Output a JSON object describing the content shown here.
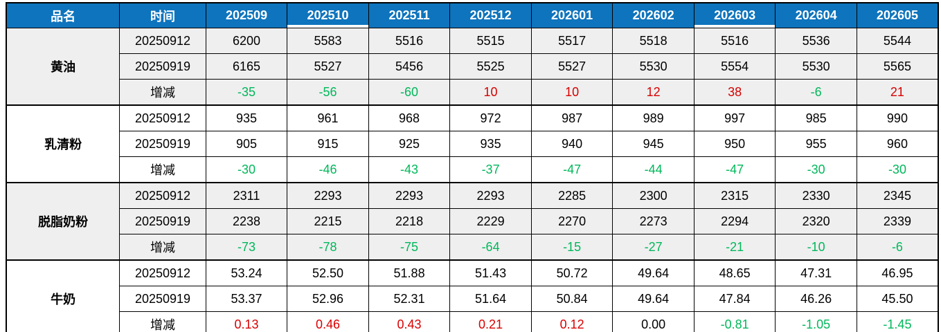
{
  "colors": {
    "header_bg": "#0e74bd",
    "header_text": "#ffffff",
    "positive": "#d80000",
    "negative": "#00b75a",
    "zero": "#000000",
    "shaded_row_bg": "#efefef",
    "grid_line": "#000000"
  },
  "chart_data": {
    "type": "table",
    "title": "",
    "columns": [
      "品名",
      "时间",
      "202509",
      "202510",
      "202511",
      "202512",
      "202601",
      "202602",
      "202603",
      "202604",
      "202605"
    ],
    "underlined_columns": [
      "202510",
      "202603"
    ],
    "change_row_label": "增减",
    "groups": [
      {
        "product": "黄油",
        "shaded": true,
        "rows": [
          {
            "label": "20250912",
            "change_row": false,
            "values": [
              "6200",
              "5583",
              "5516",
              "5515",
              "5517",
              "5518",
              "5516",
              "5536",
              "5544"
            ]
          },
          {
            "label": "20250919",
            "change_row": false,
            "values": [
              "6165",
              "5527",
              "5456",
              "5525",
              "5527",
              "5530",
              "5554",
              "5530",
              "5565"
            ]
          },
          {
            "label": "增减",
            "change_row": true,
            "values": [
              "-35",
              "-56",
              "-60",
              "10",
              "10",
              "12",
              "38",
              "-6",
              "21"
            ]
          }
        ]
      },
      {
        "product": "乳清粉",
        "shaded": false,
        "rows": [
          {
            "label": "20250912",
            "change_row": false,
            "values": [
              "935",
              "961",
              "968",
              "972",
              "987",
              "989",
              "997",
              "985",
              "990"
            ]
          },
          {
            "label": "20250919",
            "change_row": false,
            "values": [
              "905",
              "915",
              "925",
              "935",
              "940",
              "945",
              "950",
              "955",
              "960"
            ]
          },
          {
            "label": "增减",
            "change_row": true,
            "values": [
              "-30",
              "-46",
              "-43",
              "-37",
              "-47",
              "-44",
              "-47",
              "-30",
              "-30"
            ]
          }
        ]
      },
      {
        "product": "脱脂奶粉",
        "shaded": true,
        "rows": [
          {
            "label": "20250912",
            "change_row": false,
            "values": [
              "2311",
              "2293",
              "2293",
              "2293",
              "2285",
              "2300",
              "2315",
              "2330",
              "2345"
            ]
          },
          {
            "label": "20250919",
            "change_row": false,
            "values": [
              "2238",
              "2215",
              "2218",
              "2229",
              "2270",
              "2273",
              "2294",
              "2320",
              "2339"
            ]
          },
          {
            "label": "增减",
            "change_row": true,
            "values": [
              "-73",
              "-78",
              "-75",
              "-64",
              "-15",
              "-27",
              "-21",
              "-10",
              "-6"
            ]
          }
        ]
      },
      {
        "product": "牛奶",
        "shaded": false,
        "rows": [
          {
            "label": "20250912",
            "change_row": false,
            "values": [
              "53.24",
              "52.50",
              "51.88",
              "51.43",
              "50.72",
              "49.64",
              "48.65",
              "47.31",
              "46.95"
            ]
          },
          {
            "label": "20250919",
            "change_row": false,
            "values": [
              "53.37",
              "52.96",
              "52.31",
              "51.64",
              "50.84",
              "49.64",
              "47.84",
              "46.26",
              "45.50"
            ]
          },
          {
            "label": "增减",
            "change_row": true,
            "values": [
              "0.13",
              "0.46",
              "0.43",
              "0.21",
              "0.12",
              "0.00",
              "-0.81",
              "-1.05",
              "-1.45"
            ]
          }
        ]
      }
    ]
  }
}
